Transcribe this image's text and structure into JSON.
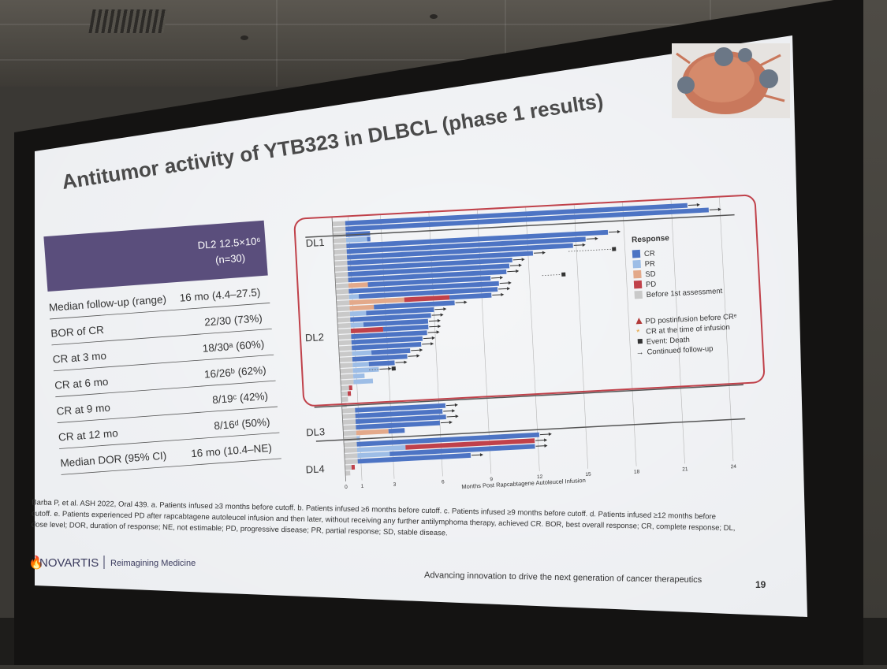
{
  "slide": {
    "title": "Antitumor activity of YTB323 in DLBCL (phase 1 results)",
    "page_number": "19",
    "tagline": "Advancing innovation to drive the next generation of cancer therapeutics",
    "brand": "NOVARTIS",
    "brand_sub": "Reimagining Medicine"
  },
  "table": {
    "header_line1": "DL2 12.5×10⁶",
    "header_line2": "(n=30)",
    "rows": [
      {
        "label": "Median follow-up (range)",
        "value": "16 mo (4.4–27.5)"
      },
      {
        "label": "BOR of CR",
        "value": "22/30 (73%)"
      },
      {
        "label": "CR at 3 mo",
        "value": "18/30ᵃ (60%)"
      },
      {
        "label": "CR at 6 mo",
        "value": "16/26ᵇ (62%)"
      },
      {
        "label": "CR at 9 mo",
        "value": "8/19ᶜ (42%)"
      },
      {
        "label": "CR at 12 mo",
        "value": "8/16ᵈ (50%)"
      },
      {
        "label": "Median DOR (95% CI)",
        "value": "16 mo (10.4–NE)"
      }
    ]
  },
  "swimmer": {
    "groups": [
      "DL1",
      "DL2",
      "DL3",
      "DL4"
    ],
    "x_ticks": [
      "0",
      "1",
      "3",
      "6",
      "9",
      "12",
      "15",
      "18",
      "21",
      "24"
    ],
    "x_label": "Months Post Rapcabtagene Autoleucel Infusion",
    "legend_title": "Response",
    "legend_items": [
      {
        "label": "CR",
        "color": "#4d74c4"
      },
      {
        "label": "PR",
        "color": "#9dbde6"
      },
      {
        "label": "SD",
        "color": "#e3a98a"
      },
      {
        "label": "PD",
        "color": "#c0414a"
      },
      {
        "label": "Before 1st assessment",
        "color": "#c9c9c9"
      }
    ],
    "symbol_items": [
      {
        "label": "PD postinfusion before CRᵉ"
      },
      {
        "label": "CR at the time of infusion"
      },
      {
        "label": "Event: Death"
      },
      {
        "label": "Continued follow-up"
      }
    ]
  },
  "footnote": {
    "line1": "Barba P, et al. ASH 2022, Oral 439.   a. Patients infused ≥3 months before cutoff.   b. Patients infused ≥6 months before cutoff.   c. Patients infused ≥9 months before cutoff.   d.   Patients infused ≥12 months before",
    "line2": "cutoff.   e. Patients experienced PD after rapcabtagene autoleucel infusion and then later, without receiving any further antilymphoma therapy, achieved CR.   BOR, best overall response; CR, complete response; DL,",
    "line3": "dose level; DOR, duration of response; NE, not estimable; PD, progressive disease; PR, partial response; SD, stable disease."
  },
  "colors": {
    "table_header": "#5a4e7c",
    "cr": "#4d74c4",
    "pr": "#9dbde6",
    "sd": "#e3a98a",
    "pd": "#c0414a",
    "before": "#c9c9c9",
    "highlight_box": "#c0414a"
  }
}
